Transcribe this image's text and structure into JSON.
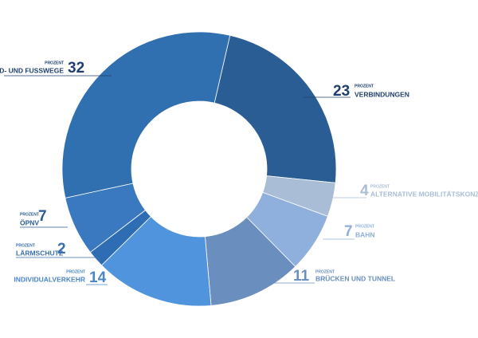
{
  "chart_data": {
    "type": "donut",
    "unit_label": "PROZENT",
    "categories": [
      "VERBINDUNGEN",
      "ALTERNATIVE MOBILITÄTSKONZEPTE",
      "BAHN",
      "BRÜCKEN UND TUNNEL",
      "INDIVIDUALVERKEHR",
      "LÄRMSCHUTZ",
      "ÖPNV",
      "RAD- UND FUSSWEGE"
    ],
    "values": [
      23,
      4,
      7,
      11,
      14,
      2,
      7,
      32
    ],
    "colors": [
      "#2a5d93",
      "#a9bdd6",
      "#8fb0dc",
      "#6a8fbf",
      "#4f94dc",
      "#2e6db3",
      "#3a78c0",
      "#3170b0"
    ],
    "label_colors": [
      "#1f3f6e",
      "#a9bdd6",
      "#8fb0dc",
      "#6a8fbf",
      "#4a86c8",
      "#3a6fae",
      "#2c5b94",
      "#1f3f6e"
    ]
  }
}
